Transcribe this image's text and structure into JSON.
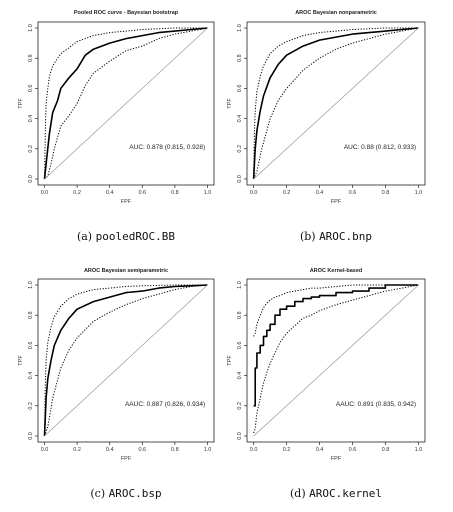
{
  "chart_data": [
    {
      "type": "line",
      "title": "Pooled ROC curve - Bayesian bootstrap",
      "xlabel": "FPF",
      "ylabel": "TPF",
      "xlim": [
        0,
        1
      ],
      "ylim": [
        0,
        1
      ],
      "xticks": [
        "0.0",
        "0.2",
        "0.4",
        "0.6",
        "0.8",
        "1.0"
      ],
      "yticks": [
        "0.0",
        "0.2",
        "0.4",
        "0.6",
        "0.8",
        "1.0"
      ],
      "annotation": "AUC: 0.878 (0.815, 0.928)",
      "caption_prefix": "(a)",
      "caption_code": "pooledROC.BB",
      "grid": false,
      "series": [
        {
          "style": "solid",
          "x": [
            0,
            0.01,
            0.03,
            0.05,
            0.08,
            0.1,
            0.15,
            0.2,
            0.25,
            0.3,
            0.4,
            0.5,
            0.6,
            0.7,
            0.8,
            0.9,
            1.0
          ],
          "y": [
            0,
            0.1,
            0.3,
            0.44,
            0.52,
            0.6,
            0.67,
            0.73,
            0.82,
            0.86,
            0.9,
            0.93,
            0.95,
            0.97,
            0.98,
            0.99,
            1.0
          ]
        },
        {
          "style": "dotted",
          "x": [
            0,
            0.005,
            0.01,
            0.02,
            0.03,
            0.05,
            0.08,
            0.1,
            0.15,
            0.2,
            0.3,
            0.4,
            0.5,
            0.6,
            0.8,
            1.0
          ],
          "y": [
            0,
            0.3,
            0.5,
            0.6,
            0.68,
            0.75,
            0.8,
            0.83,
            0.87,
            0.91,
            0.95,
            0.97,
            0.98,
            0.99,
            1.0,
            1.0
          ]
        },
        {
          "style": "dotted",
          "x": [
            0,
            0.02,
            0.04,
            0.06,
            0.1,
            0.15,
            0.2,
            0.25,
            0.3,
            0.4,
            0.5,
            0.6,
            0.7,
            0.8,
            0.9,
            1.0
          ],
          "y": [
            0,
            0.02,
            0.1,
            0.2,
            0.35,
            0.42,
            0.5,
            0.62,
            0.7,
            0.78,
            0.85,
            0.88,
            0.93,
            0.96,
            0.98,
            1.0
          ]
        },
        {
          "style": "diagonal",
          "x": [
            0,
            1
          ],
          "y": [
            0,
            1
          ]
        }
      ]
    },
    {
      "type": "line",
      "title": "AROC Bayesian nonparametric",
      "xlabel": "FPF",
      "ylabel": "TPF",
      "xlim": [
        0,
        1
      ],
      "ylim": [
        0,
        1
      ],
      "xticks": [
        "0.0",
        "0.2",
        "0.4",
        "0.6",
        "0.8",
        "1.0"
      ],
      "yticks": [
        "0.0",
        "0.2",
        "0.4",
        "0.6",
        "0.8",
        "1.0"
      ],
      "annotation": "AUC: 0.88 (0.812, 0.933)",
      "caption_prefix": "(b)",
      "caption_code": "AROC.bnp",
      "grid": false,
      "series": [
        {
          "style": "solid",
          "x": [
            0,
            0.01,
            0.02,
            0.04,
            0.06,
            0.1,
            0.15,
            0.2,
            0.3,
            0.4,
            0.5,
            0.6,
            0.7,
            0.8,
            0.9,
            1.0
          ],
          "y": [
            0,
            0.2,
            0.32,
            0.45,
            0.55,
            0.67,
            0.76,
            0.82,
            0.88,
            0.92,
            0.94,
            0.96,
            0.97,
            0.98,
            0.99,
            1.0
          ]
        },
        {
          "style": "dotted",
          "x": [
            0,
            0.005,
            0.01,
            0.02,
            0.04,
            0.06,
            0.1,
            0.15,
            0.2,
            0.3,
            0.4,
            0.5,
            0.6,
            0.8,
            1.0
          ],
          "y": [
            0,
            0.3,
            0.45,
            0.58,
            0.68,
            0.75,
            0.83,
            0.88,
            0.91,
            0.95,
            0.97,
            0.98,
            0.99,
            1.0,
            1.0
          ]
        },
        {
          "style": "dotted",
          "x": [
            0,
            0.02,
            0.05,
            0.1,
            0.15,
            0.2,
            0.25,
            0.3,
            0.4,
            0.5,
            0.6,
            0.7,
            0.8,
            0.9,
            1.0
          ],
          "y": [
            0,
            0.05,
            0.2,
            0.4,
            0.52,
            0.6,
            0.66,
            0.72,
            0.8,
            0.86,
            0.9,
            0.93,
            0.96,
            0.98,
            1.0
          ]
        },
        {
          "style": "diagonal",
          "x": [
            0,
            1
          ],
          "y": [
            0,
            1
          ]
        }
      ]
    },
    {
      "type": "line",
      "title": "AROC Bayesian semiparametric",
      "xlabel": "FPF",
      "ylabel": "TPF",
      "xlim": [
        0,
        1
      ],
      "ylim": [
        0,
        1
      ],
      "xticks": [
        "0.0",
        "0.2",
        "0.4",
        "0.6",
        "0.8",
        "1.0"
      ],
      "yticks": [
        "0.0",
        "0.2",
        "0.4",
        "0.6",
        "0.8",
        "1.0"
      ],
      "annotation": "AAUC: 0.887 (0.826, 0.934)",
      "caption_prefix": "(c)",
      "caption_code": "AROC.bsp",
      "grid": false,
      "series": [
        {
          "style": "solid",
          "x": [
            0,
            0.01,
            0.02,
            0.04,
            0.06,
            0.1,
            0.15,
            0.2,
            0.3,
            0.4,
            0.5,
            0.6,
            0.7,
            0.8,
            0.9,
            1.0
          ],
          "y": [
            0,
            0.25,
            0.38,
            0.5,
            0.6,
            0.7,
            0.78,
            0.84,
            0.89,
            0.92,
            0.95,
            0.96,
            0.98,
            0.99,
            0.995,
            1.0
          ]
        },
        {
          "style": "dotted",
          "x": [
            0,
            0.005,
            0.01,
            0.02,
            0.04,
            0.06,
            0.1,
            0.15,
            0.2,
            0.3,
            0.4,
            0.5,
            0.6,
            0.8,
            1.0
          ],
          "y": [
            0,
            0.35,
            0.5,
            0.62,
            0.72,
            0.79,
            0.86,
            0.91,
            0.94,
            0.97,
            0.98,
            0.99,
            0.995,
            1.0,
            1.0
          ]
        },
        {
          "style": "dotted",
          "x": [
            0,
            0.02,
            0.05,
            0.1,
            0.15,
            0.2,
            0.3,
            0.4,
            0.5,
            0.6,
            0.7,
            0.8,
            0.9,
            1.0
          ],
          "y": [
            0,
            0.06,
            0.25,
            0.45,
            0.57,
            0.65,
            0.76,
            0.82,
            0.87,
            0.91,
            0.94,
            0.97,
            0.99,
            1.0
          ]
        },
        {
          "style": "diagonal",
          "x": [
            0,
            1
          ],
          "y": [
            0,
            1
          ]
        }
      ]
    },
    {
      "type": "line",
      "title": "AROC Kernel-based",
      "xlabel": "FPF",
      "ylabel": "TPF",
      "xlim": [
        0,
        1
      ],
      "ylim": [
        0,
        1
      ],
      "xticks": [
        "0.0",
        "0.2",
        "0.4",
        "0.6",
        "0.8",
        "1.0"
      ],
      "yticks": [
        "0.0",
        "0.2",
        "0.4",
        "0.6",
        "0.8",
        "1.0"
      ],
      "annotation": "AAUC: 0.891 (0.835, 0.942)",
      "caption_prefix": "(d)",
      "caption_code": "AROC.kernel",
      "grid": false,
      "series": [
        {
          "style": "solid",
          "x": [
            0,
            0.01,
            0.01,
            0.02,
            0.02,
            0.04,
            0.04,
            0.06,
            0.06,
            0.08,
            0.08,
            0.1,
            0.1,
            0.13,
            0.13,
            0.16,
            0.16,
            0.2,
            0.2,
            0.25,
            0.25,
            0.3,
            0.3,
            0.35,
            0.35,
            0.4,
            0.4,
            0.5,
            0.5,
            0.6,
            0.6,
            0.7,
            0.7,
            0.8,
            0.8,
            1.0
          ],
          "y": [
            0.2,
            0.2,
            0.45,
            0.45,
            0.55,
            0.55,
            0.6,
            0.6,
            0.66,
            0.66,
            0.7,
            0.7,
            0.74,
            0.74,
            0.8,
            0.8,
            0.84,
            0.84,
            0.86,
            0.86,
            0.89,
            0.89,
            0.91,
            0.91,
            0.92,
            0.92,
            0.93,
            0.93,
            0.95,
            0.95,
            0.96,
            0.96,
            0.98,
            0.98,
            1.0,
            1.0
          ]
        },
        {
          "style": "dotted",
          "x": [
            0,
            0.01,
            0.02,
            0.04,
            0.06,
            0.08,
            0.1,
            0.13,
            0.16,
            0.2,
            0.25,
            0.3,
            0.35,
            0.4,
            0.5,
            0.6,
            0.7,
            1.0
          ],
          "y": [
            0.66,
            0.68,
            0.74,
            0.8,
            0.85,
            0.88,
            0.9,
            0.92,
            0.93,
            0.95,
            0.96,
            0.97,
            0.98,
            0.98,
            0.99,
            1.0,
            1.0,
            1.0
          ]
        },
        {
          "style": "dotted",
          "x": [
            0,
            0.01,
            0.02,
            0.04,
            0.06,
            0.08,
            0.1,
            0.13,
            0.16,
            0.2,
            0.25,
            0.3,
            0.35,
            0.4,
            0.5,
            0.6,
            0.7,
            0.8,
            0.9,
            1.0
          ],
          "y": [
            0.02,
            0.05,
            0.15,
            0.25,
            0.35,
            0.42,
            0.48,
            0.55,
            0.62,
            0.68,
            0.73,
            0.78,
            0.8,
            0.83,
            0.87,
            0.9,
            0.93,
            0.96,
            0.98,
            1.0
          ]
        },
        {
          "style": "diagonal",
          "x": [
            0,
            1
          ],
          "y": [
            0,
            1
          ]
        }
      ]
    }
  ]
}
